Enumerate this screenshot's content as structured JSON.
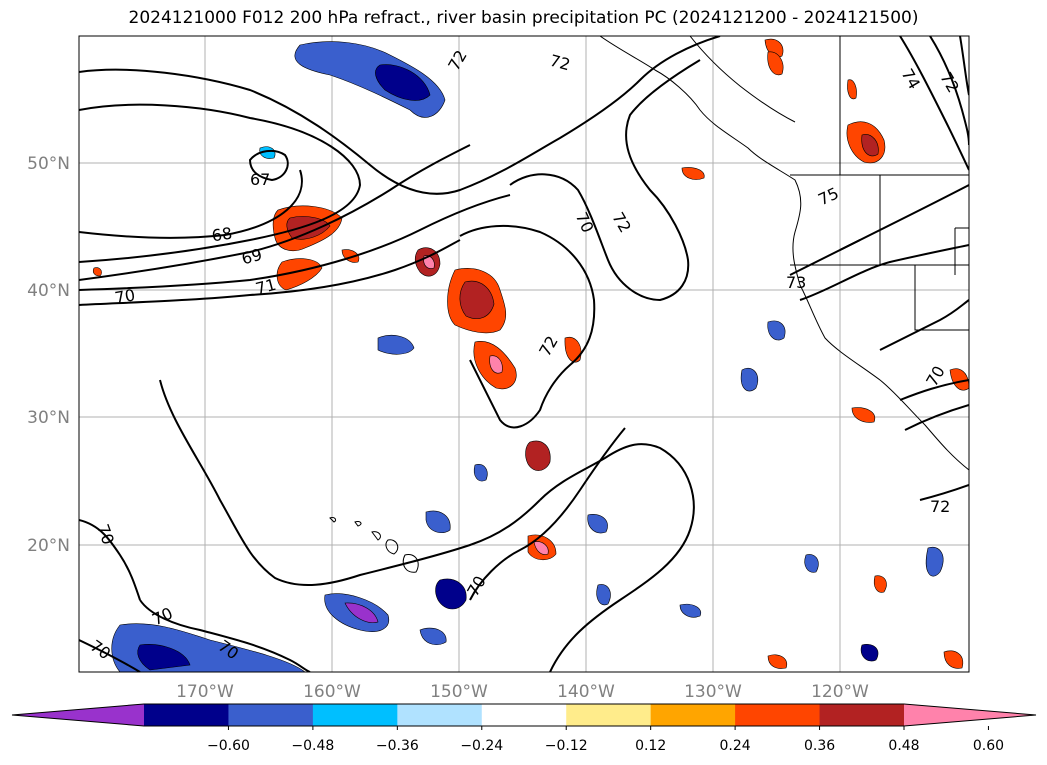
{
  "title": "2024121000 F012 200 hPa refract., river basin precipitation PC (2024121200 - 2024121500)",
  "map": {
    "lat_labels": [
      "50°N",
      "40°N",
      "30°N",
      "20°N"
    ],
    "lon_labels": [
      "170°W",
      "160°W",
      "150°W",
      "140°W",
      "130°W",
      "120°W"
    ],
    "contour_labels": [
      "72",
      "72",
      "74",
      "72",
      "67",
      "68",
      "69",
      "70",
      "71",
      "70",
      "72",
      "75",
      "73",
      "72",
      "70",
      "70",
      "72",
      "70",
      "70",
      "70",
      "70"
    ]
  },
  "colorbar": {
    "ticks": [
      "−0.60",
      "−0.48",
      "−0.36",
      "−0.24",
      "−0.12",
      "0.12",
      "0.24",
      "0.36",
      "0.48",
      "0.60"
    ],
    "colors": [
      "#9932cc",
      "#00008b",
      "#3a5fcd",
      "#00bfff",
      "#b0e2ff",
      "#ffffff",
      "#ffec8b",
      "#ffa500",
      "#ff4500",
      "#b22222",
      "#ff82ab"
    ]
  }
}
